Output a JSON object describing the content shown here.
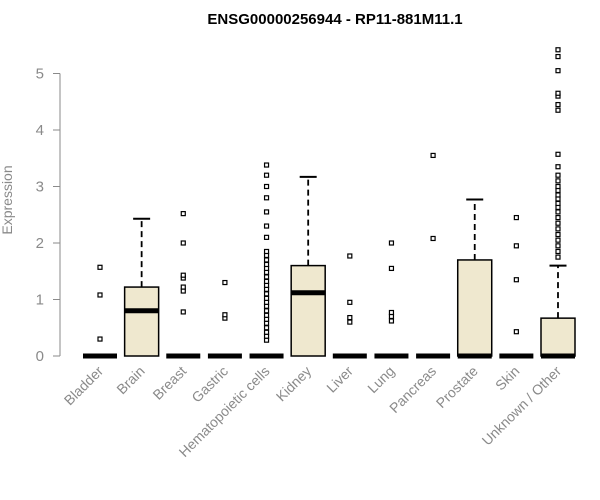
{
  "chart_data": {
    "type": "boxplot",
    "title": "ENSG00000256944 - RP11-881M11.1",
    "ylabel": "Expression",
    "xlabel": "",
    "ylim": [
      0,
      5.6
    ],
    "yticks": [
      0,
      1,
      2,
      3,
      4,
      5
    ],
    "grid": false,
    "colors": {
      "box_fill": "#efe8cf",
      "box_stroke": "#000000",
      "axis": "#8a8a8a"
    },
    "categories": [
      "Bladder",
      "Brain",
      "Breast",
      "Gastric",
      "Hematopoietic cells",
      "Kidney",
      "Liver",
      "Lung",
      "Pancreas",
      "Prostate",
      "Skin",
      "Unknown / Other"
    ],
    "boxes": [
      {
        "q1": 0,
        "median": 0,
        "q3": 0,
        "whisker_low": 0,
        "whisker_high": 0,
        "outliers": [
          0.3,
          1.08,
          1.57
        ]
      },
      {
        "q1": 0,
        "median": 0.8,
        "q3": 1.22,
        "whisker_low": 0,
        "whisker_high": 2.43,
        "outliers": []
      },
      {
        "q1": 0,
        "median": 0,
        "q3": 0,
        "whisker_low": 0,
        "whisker_high": 0,
        "outliers": [
          0.78,
          1.15,
          1.22,
          1.38,
          1.43,
          2.0,
          2.52
        ]
      },
      {
        "q1": 0,
        "median": 0,
        "q3": 0,
        "whisker_low": 0,
        "whisker_high": 0,
        "outliers": [
          0.67,
          0.73,
          1.3
        ]
      },
      {
        "q1": 0,
        "median": 0,
        "q3": 0,
        "whisker_low": 0,
        "whisker_high": 0,
        "outliers": [
          0.28,
          0.35,
          0.42,
          0.5,
          0.58,
          0.65,
          0.72,
          0.8,
          0.88,
          0.95,
          1.02,
          1.1,
          1.18,
          1.25,
          1.32,
          1.4,
          1.48,
          1.55,
          1.62,
          1.7,
          1.78,
          1.85,
          2.1,
          2.3,
          2.55,
          2.8,
          3.0,
          3.2,
          3.38
        ]
      },
      {
        "q1": 0,
        "median": 1.12,
        "q3": 1.6,
        "whisker_low": 0,
        "whisker_high": 3.17,
        "outliers": []
      },
      {
        "q1": 0,
        "median": 0,
        "q3": 0,
        "whisker_low": 0,
        "whisker_high": 0,
        "outliers": [
          0.6,
          0.68,
          0.95,
          1.77
        ]
      },
      {
        "q1": 0,
        "median": 0,
        "q3": 0,
        "whisker_low": 0,
        "whisker_high": 0,
        "outliers": [
          0.62,
          0.7,
          0.77,
          1.55,
          2.0
        ]
      },
      {
        "q1": 0,
        "median": 0,
        "q3": 0,
        "whisker_low": 0,
        "whisker_high": 0,
        "outliers": [
          2.08,
          3.55
        ]
      },
      {
        "q1": 0,
        "median": 0,
        "q3": 1.7,
        "whisker_low": 0,
        "whisker_high": 2.77,
        "outliers": []
      },
      {
        "q1": 0,
        "median": 0,
        "q3": 0,
        "whisker_low": 0,
        "whisker_high": 0,
        "outliers": [
          0.43,
          1.35,
          1.95,
          2.45
        ]
      },
      {
        "q1": 0,
        "median": 0,
        "q3": 0.67,
        "whisker_low": 0,
        "whisker_high": 1.6,
        "outliers": [
          1.75,
          1.85,
          1.95,
          2.05,
          2.15,
          2.25,
          2.35,
          2.45,
          2.55,
          2.63,
          2.7,
          2.78,
          2.85,
          2.93,
          3.0,
          3.1,
          3.2,
          3.35,
          3.57,
          4.35,
          4.45,
          4.6,
          4.65,
          5.05,
          5.3,
          5.42
        ]
      }
    ]
  }
}
